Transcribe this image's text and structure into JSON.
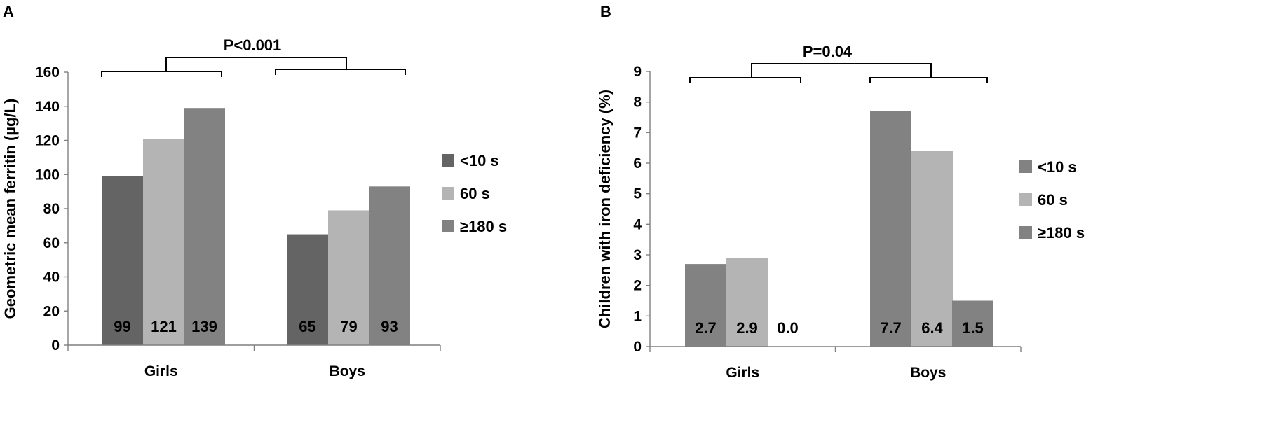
{
  "chart_data": [
    {
      "panel": "A",
      "type": "bar",
      "categories": [
        "Girls",
        "Boys"
      ],
      "series": [
        {
          "name": "<10 s",
          "values": [
            99,
            65
          ],
          "color": "#646464"
        },
        {
          "name": "60 s",
          "values": [
            121,
            79
          ],
          "color": "#b4b4b4"
        },
        {
          "name": "≥180 s",
          "values": [
            139,
            93
          ],
          "color": "#828282"
        }
      ],
      "data_labels": [
        [
          "99",
          "121",
          "139"
        ],
        [
          "65",
          "79",
          "93"
        ]
      ],
      "ylabel": "Geometric mean ferritin (µg/L)",
      "xlabel": "",
      "ylim": [
        0,
        160
      ],
      "yticks": [
        "0",
        "20",
        "40",
        "60",
        "80",
        "100",
        "120",
        "140",
        "160"
      ],
      "annotation": "P<0.001",
      "legend_position": "right",
      "grid": false
    },
    {
      "panel": "B",
      "type": "bar",
      "categories": [
        "Girls",
        "Boys"
      ],
      "series": [
        {
          "name": "<10 s",
          "values": [
            2.7,
            7.7
          ],
          "color": "#828282"
        },
        {
          "name": "60 s",
          "values": [
            2.9,
            6.4
          ],
          "color": "#b4b4b4"
        },
        {
          "name": "≥180 s",
          "values": [
            0.0,
            1.5
          ],
          "color": "#828282"
        }
      ],
      "data_labels": [
        [
          "2.7",
          "2.9",
          "0.0"
        ],
        [
          "7.7",
          "6.4",
          "1.5"
        ]
      ],
      "ylabel": "Children with iron deficiency  (%)",
      "xlabel": "",
      "ylim": [
        0,
        9
      ],
      "yticks": [
        "0",
        "1",
        "2",
        "3",
        "4",
        "5",
        "6",
        "7",
        "8",
        "9"
      ],
      "annotation": "P=0.04",
      "legend_position": "right",
      "grid": false
    }
  ]
}
